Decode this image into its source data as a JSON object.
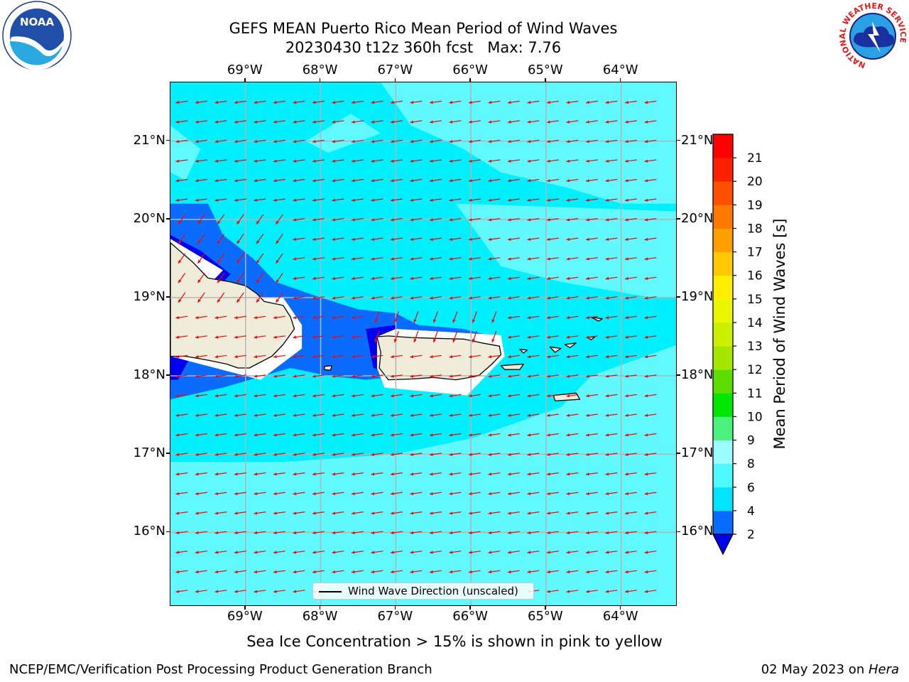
{
  "title": {
    "line1": "GEFS MEAN Puerto Rico Mean Period of Wind Waves",
    "line2": "20230430 t12z 360h fcst   Max: 7.76"
  },
  "axes": {
    "lon_ticks": [
      "69°W",
      "68°W",
      "67°W",
      "66°W",
      "65°W",
      "64°W"
    ],
    "lat_ticks": [
      "21°N",
      "20°N",
      "19°N",
      "18°N",
      "17°N",
      "16°N"
    ],
    "lon_values": [
      -69,
      -68,
      -67,
      -66,
      -65,
      -64
    ],
    "lat_values": [
      21,
      20,
      19,
      18,
      17,
      16
    ],
    "lon_range": [
      -70,
      -63.25
    ],
    "lat_range": [
      15.05,
      21.75
    ]
  },
  "legend": {
    "label": "Wind Wave Direction (unscaled)"
  },
  "colorbar": {
    "label": "Mean Period of Wind Waves [s]",
    "ticks": [
      "2",
      "4",
      "6",
      "8",
      "9",
      "10",
      "11",
      "12",
      "13",
      "14",
      "15",
      "16",
      "17",
      "18",
      "19",
      "20",
      "21"
    ],
    "levels": [
      2,
      4,
      6,
      8,
      9,
      10,
      11,
      12,
      13,
      14,
      15,
      16,
      17,
      18,
      19,
      20,
      21
    ],
    "colors": [
      "#0a6cff",
      "#00e5ff",
      "#4dfbff",
      "#9bfdff",
      "#4cf27f",
      "#00e600",
      "#5fdc00",
      "#a6e600",
      "#cdf000",
      "#eaf500",
      "#ffee00",
      "#ffc800",
      "#ffa000",
      "#ff7800",
      "#ff5000",
      "#ff2000",
      "#ff0000"
    ],
    "under_color": "#0000ee",
    "max_value": 7.76
  },
  "colors": {
    "ocean_low": "#00f0ff",
    "ocean_mid": "#5ff9ff",
    "land": "#efedda",
    "arrow": "#ff0000",
    "grid": "#b4b4b4"
  },
  "footer": {
    "note": "Sea Ice Concentration > 15% is shown in pink to yellow",
    "left": "NCEP/EMC/Verification Post Processing Product Generation Branch",
    "date": "02 May 2023 on ",
    "host": "Hera"
  },
  "logos": {
    "noaa": "NOAA",
    "nws_ring": "NATIONAL WEATHER SERVICE"
  }
}
